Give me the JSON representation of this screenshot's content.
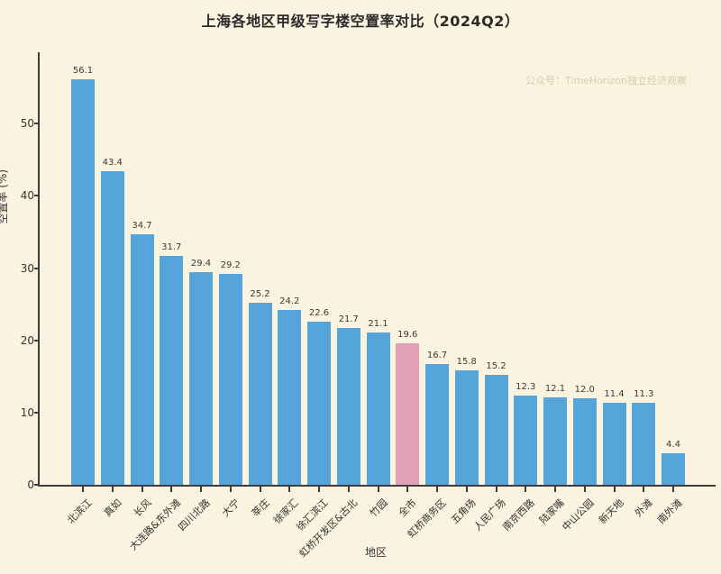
{
  "title": "上海各地区甲级写字楼空置率对比（2024Q2）",
  "watermark": "公众号：TimeHorizon独立经济观察",
  "chart_data": {
    "type": "bar",
    "title": "上海各地区甲级写字楼空置率对比（2024Q2）",
    "xlabel": "地区",
    "ylabel": "空置率 (%)",
    "categories": [
      "北滨江",
      "真如",
      "长风",
      "大连路&东外滩",
      "四川北路",
      "大宁",
      "莘庄",
      "徐家汇",
      "徐汇滨江",
      "虹桥开发区&古北",
      "竹园",
      "全市",
      "虹桥商务区",
      "五角场",
      "人民广场",
      "南京西路",
      "陆家嘴",
      "中山公园",
      "新天地",
      "外滩",
      "南外滩"
    ],
    "values": [
      56.1,
      43.4,
      34.7,
      31.7,
      29.4,
      29.2,
      25.2,
      24.2,
      22.6,
      21.7,
      21.1,
      19.6,
      16.7,
      15.8,
      15.2,
      12.3,
      12.1,
      12.0,
      11.4,
      11.3,
      4.4
    ],
    "highlight_category": "全市",
    "highlight_index": 11,
    "bar_color": "#55a4da",
    "highlight_color": "#e2a0b6",
    "background_color": "#faf3df",
    "ylim": [
      0,
      59.9
    ],
    "yticks": [
      0,
      10,
      20,
      30,
      40,
      50
    ],
    "grid": false,
    "value_labels": true,
    "legend": null
  }
}
